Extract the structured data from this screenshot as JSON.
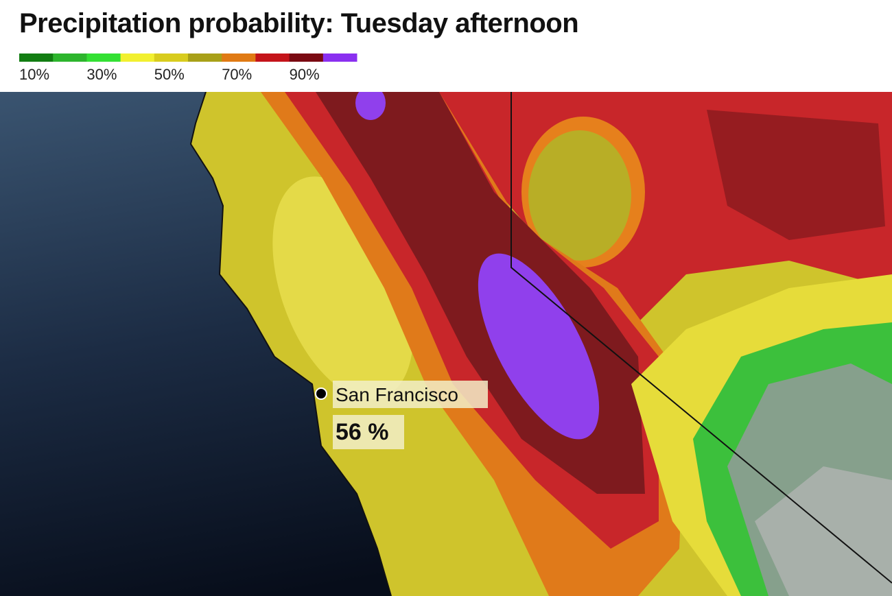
{
  "title": "Precipitation probability: Tuesday afternoon",
  "legend": {
    "colors": [
      "#127d12",
      "#2db52d",
      "#33e033",
      "#f2f030",
      "#d8cc1e",
      "#a8a018",
      "#e07a14",
      "#c4141a",
      "#7a0a12",
      "#8a30f0"
    ],
    "labels": [
      "10%",
      "30%",
      "50%",
      "70%",
      "90%"
    ]
  },
  "marker": {
    "name": "San Francisco",
    "value": "56 %"
  }
}
